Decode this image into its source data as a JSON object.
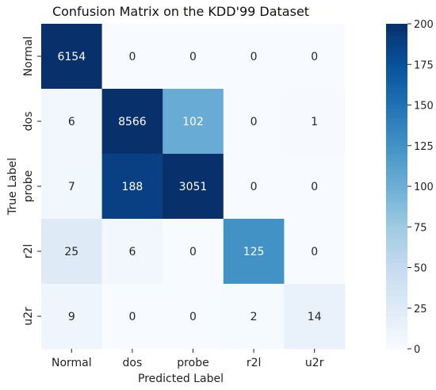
{
  "chart_data": {
    "type": "heatmap",
    "title": "Confusion Matrix on the KDD'99 Dataset",
    "xlabel": "Predicted Label",
    "ylabel": "True Label",
    "x_categories": [
      "Normal",
      "dos",
      "probe",
      "r2l",
      "u2r"
    ],
    "y_categories": [
      "Normal",
      "dos",
      "probe",
      "r2l",
      "u2r"
    ],
    "matrix": [
      [
        6154,
        0,
        0,
        0,
        0
      ],
      [
        6,
        8566,
        102,
        0,
        1
      ],
      [
        7,
        188,
        3051,
        0,
        0
      ],
      [
        25,
        6,
        0,
        125,
        0
      ],
      [
        9,
        0,
        0,
        2,
        14
      ]
    ],
    "colorbar": {
      "vmin": 0,
      "vmax": 200,
      "ticks": [
        0,
        25,
        50,
        75,
        100,
        125,
        150,
        175,
        200
      ],
      "colormap": "Blues"
    },
    "grid": false
  }
}
